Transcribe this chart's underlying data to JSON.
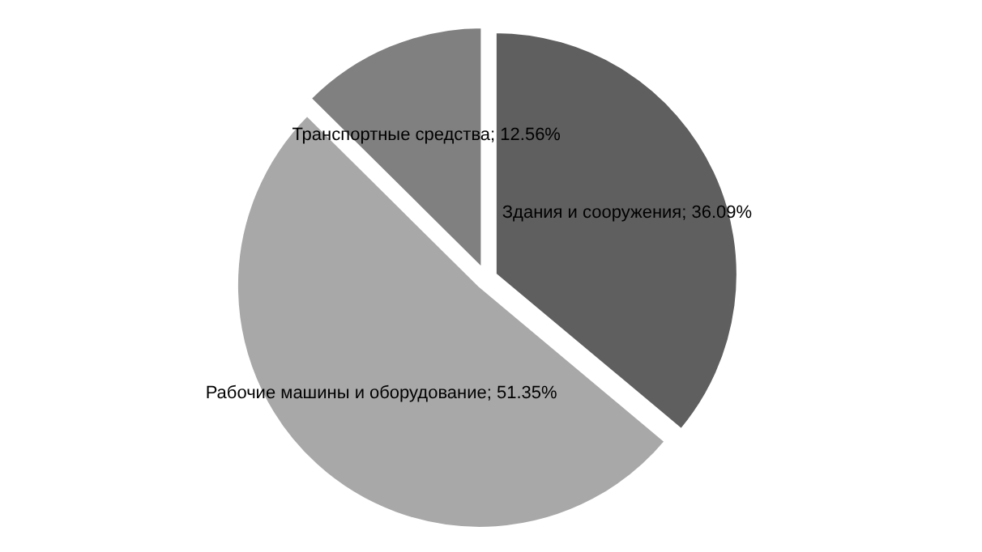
{
  "chart_data": {
    "type": "pie",
    "categories": [
      "Здания и сооружения",
      "Рабочие машины и оборудование",
      "Транспортные средства"
    ],
    "values": [
      36.09,
      51.35,
      12.56
    ],
    "value_labels": [
      "36.09%",
      "51.35%",
      "12.56%"
    ],
    "colors": [
      "#5f5f5f",
      "#a8a8a8",
      "#808080"
    ],
    "legend": false
  }
}
